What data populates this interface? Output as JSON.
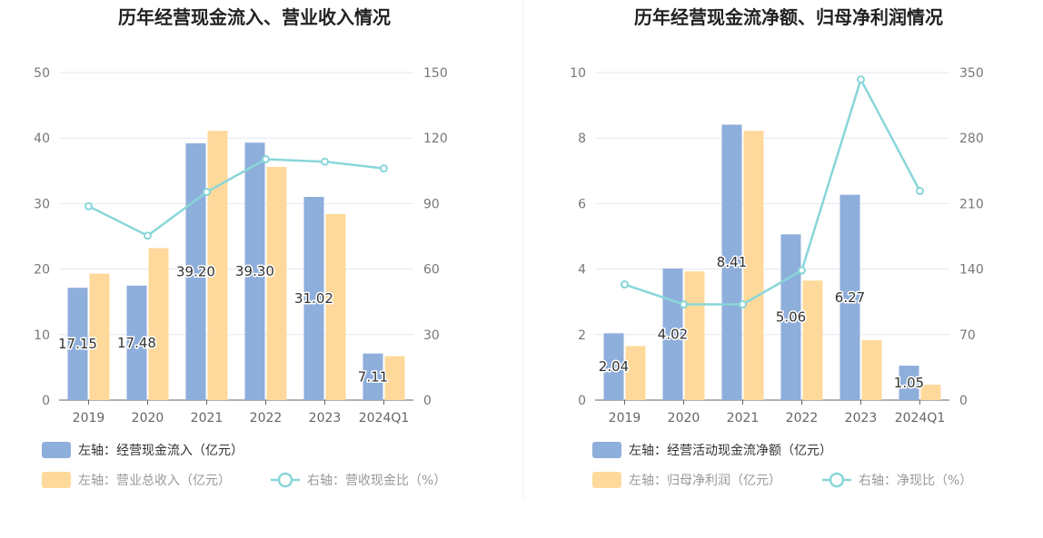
{
  "chart_data": [
    {
      "type": "bar",
      "title": "历年经营现金流入、营业收入情况",
      "categories": [
        "2019",
        "2020",
        "2021",
        "2022",
        "2023",
        "2024Q1"
      ],
      "left_axis": {
        "ticks": [
          "0",
          "10",
          "20",
          "30",
          "40",
          "50"
        ],
        "ylim": [
          0,
          50
        ]
      },
      "right_axis": {
        "ticks": [
          "0",
          "30",
          "60",
          "90",
          "120",
          "150"
        ],
        "ylim": [
          0,
          150
        ]
      },
      "series": [
        {
          "name": "左轴：经营现金流入（亿元）",
          "type": "bar",
          "axis": "left",
          "color": "#8eaedb",
          "values": [
            17.15,
            17.48,
            39.2,
            39.3,
            31.02,
            7.11
          ],
          "labels": [
            "17.15",
            "17.48",
            "39.20",
            "39.30",
            "31.02",
            "7.11"
          ]
        },
        {
          "name": "左轴：营业总收入（亿元）",
          "type": "bar",
          "axis": "left",
          "color": "#ffd99b",
          "values": [
            19.3,
            23.2,
            41.1,
            35.6,
            28.4,
            6.7
          ]
        },
        {
          "name": "右轴：营收现金比（%）",
          "type": "line",
          "axis": "right",
          "color": "#89d6d9",
          "values": [
            88.8,
            75.3,
            95.3,
            110.3,
            109.2,
            106.1
          ]
        }
      ],
      "grid": true,
      "legend_position": "bottom-left"
    },
    {
      "type": "bar",
      "title": "历年经营现金流净额、归母净利润情况",
      "categories": [
        "2019",
        "2020",
        "2021",
        "2022",
        "2023",
        "2024Q1"
      ],
      "left_axis": {
        "ticks": [
          "0",
          "2",
          "4",
          "6",
          "8",
          "10"
        ],
        "ylim": [
          0,
          10
        ]
      },
      "right_axis": {
        "ticks": [
          "0",
          "70",
          "140",
          "210",
          "280",
          "350"
        ],
        "ylim": [
          0,
          350
        ]
      },
      "series": [
        {
          "name": "左轴：经营活动现金流净额（亿元）",
          "type": "bar",
          "axis": "left",
          "color": "#8eaedb",
          "values": [
            2.04,
            4.02,
            8.41,
            5.06,
            6.27,
            1.05
          ],
          "labels": [
            "2.04",
            "4.02",
            "8.41",
            "5.06",
            "6.27",
            "1.05"
          ]
        },
        {
          "name": "左轴：归母净利润（亿元）",
          "type": "bar",
          "axis": "left",
          "color": "#ffd99b",
          "values": [
            1.65,
            3.93,
            8.22,
            3.65,
            1.83,
            0.47
          ]
        },
        {
          "name": "右轴：净现比（%）",
          "type": "line",
          "axis": "right",
          "color": "#89d6d9",
          "values": [
            123.6,
            102.3,
            102.3,
            138.6,
            342.6,
            223.4
          ]
        }
      ],
      "grid": true,
      "legend_position": "bottom-left"
    }
  ]
}
